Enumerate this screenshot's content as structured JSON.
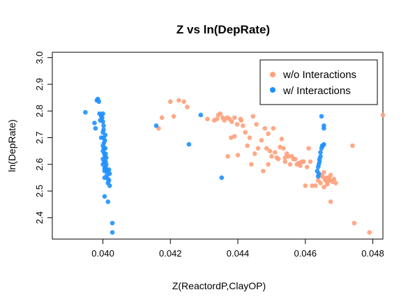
{
  "chart_data": {
    "type": "scatter",
    "title": "Z vs ln(DepRate)",
    "xlabel": "Z(ReactordP,ClayOP)",
    "ylabel": "ln(DepRate)",
    "xlim": [
      0.0385,
      0.0483
    ],
    "ylim": [
      2.32,
      3.02
    ],
    "xticks": [
      "0.040",
      "0.042",
      "0.044",
      "0.046",
      "0.048"
    ],
    "yticks": [
      "2.4",
      "2.5",
      "2.6",
      "2.7",
      "2.8",
      "2.9",
      "3.0"
    ],
    "legend": {
      "position": "top-right",
      "entries": [
        {
          "label": "w/o Interactions",
          "color": "#FFA07A"
        },
        {
          "label": "w/ Interactions",
          "color": "#1E90FF"
        }
      ]
    },
    "series": [
      {
        "name": "w/o Interactions",
        "color": "#FFA07A",
        "points": [
          [
            0.04165,
            2.735
          ],
          [
            0.04175,
            2.775
          ],
          [
            0.042,
            2.835
          ],
          [
            0.0421,
            2.78
          ],
          [
            0.04225,
            2.84
          ],
          [
            0.0424,
            2.835
          ],
          [
            0.0425,
            2.815
          ],
          [
            0.0431,
            2.77
          ],
          [
            0.0433,
            2.765
          ],
          [
            0.04338,
            2.77
          ],
          [
            0.04342,
            2.785
          ],
          [
            0.04348,
            2.79
          ],
          [
            0.04355,
            2.775
          ],
          [
            0.0436,
            2.765
          ],
          [
            0.04368,
            2.775
          ],
          [
            0.04375,
            2.77
          ],
          [
            0.04382,
            2.76
          ],
          [
            0.0439,
            2.775
          ],
          [
            0.04398,
            2.75
          ],
          [
            0.0437,
            2.63
          ],
          [
            0.0438,
            2.7
          ],
          [
            0.0439,
            2.705
          ],
          [
            0.044,
            2.635
          ],
          [
            0.04408,
            2.77
          ],
          [
            0.0441,
            2.765
          ],
          [
            0.04415,
            2.745
          ],
          [
            0.04422,
            2.72
          ],
          [
            0.04428,
            2.67
          ],
          [
            0.04435,
            2.7
          ],
          [
            0.0444,
            2.6
          ],
          [
            0.04445,
            2.78
          ],
          [
            0.0445,
            2.64
          ],
          [
            0.04455,
            2.75
          ],
          [
            0.0446,
            2.66
          ],
          [
            0.0447,
            2.69
          ],
          [
            0.04475,
            2.575
          ],
          [
            0.0448,
            2.735
          ],
          [
            0.04485,
            2.66
          ],
          [
            0.0449,
            2.715
          ],
          [
            0.0449,
            2.6
          ],
          [
            0.04495,
            2.65
          ],
          [
            0.045,
            2.63
          ],
          [
            0.04505,
            2.735
          ],
          [
            0.0451,
            2.645
          ],
          [
            0.04515,
            2.625
          ],
          [
            0.0452,
            2.62
          ],
          [
            0.04525,
            2.665
          ],
          [
            0.0453,
            2.695
          ],
          [
            0.04535,
            2.66
          ],
          [
            0.0454,
            2.625
          ],
          [
            0.0454,
            2.61
          ],
          [
            0.04545,
            2.64
          ],
          [
            0.0455,
            2.63
          ],
          [
            0.04555,
            2.6
          ],
          [
            0.0456,
            2.63
          ],
          [
            0.04565,
            2.62
          ],
          [
            0.0457,
            2.62
          ],
          [
            0.04575,
            2.6
          ],
          [
            0.0458,
            2.605
          ],
          [
            0.04585,
            2.595
          ],
          [
            0.0459,
            2.61
          ],
          [
            0.04595,
            2.61
          ],
          [
            0.046,
            2.52
          ],
          [
            0.04605,
            2.59
          ],
          [
            0.0461,
            2.66
          ],
          [
            0.04615,
            2.61
          ],
          [
            0.0462,
            2.52
          ],
          [
            0.0463,
            2.52
          ],
          [
            0.04638,
            2.54
          ],
          [
            0.04645,
            2.53
          ],
          [
            0.0465,
            2.555
          ],
          [
            0.04655,
            2.57
          ],
          [
            0.04658,
            2.545
          ],
          [
            0.0466,
            2.54
          ],
          [
            0.04663,
            2.55
          ],
          [
            0.04666,
            2.535
          ],
          [
            0.0467,
            2.55
          ],
          [
            0.04672,
            2.54
          ],
          [
            0.04675,
            2.56
          ],
          [
            0.0468,
            2.535
          ],
          [
            0.04685,
            2.545
          ],
          [
            0.0469,
            2.53
          ],
          [
            0.04675,
            2.46
          ],
          [
            0.04645,
            2.56
          ],
          [
            0.0474,
            2.67
          ],
          [
            0.04745,
            2.38
          ],
          [
            0.0479,
            2.345
          ],
          [
            0.0483,
            2.785
          ],
          [
            0.04655,
            2.515
          ],
          [
            0.04665,
            2.525
          ]
        ]
      },
      {
        "name": "w/ Interactions",
        "color": "#1E90FF",
        "points": [
          [
            0.03948,
            2.795
          ],
          [
            0.03975,
            2.755
          ],
          [
            0.03978,
            2.735
          ],
          [
            0.03982,
            2.84
          ],
          [
            0.03985,
            2.845
          ],
          [
            0.03988,
            2.835
          ],
          [
            0.0399,
            2.79
          ],
          [
            0.03992,
            2.765
          ],
          [
            0.03995,
            2.78
          ],
          [
            0.03995,
            2.7
          ],
          [
            0.03998,
            2.775
          ],
          [
            0.04,
            2.79
          ],
          [
            0.04,
            2.76
          ],
          [
            0.04,
            2.67
          ],
          [
            0.04,
            2.72
          ],
          [
            0.04,
            2.65
          ],
          [
            0.04,
            2.62
          ],
          [
            0.04,
            2.6
          ],
          [
            0.04002,
            2.745
          ],
          [
            0.04002,
            2.73
          ],
          [
            0.04002,
            2.7
          ],
          [
            0.04003,
            2.68
          ],
          [
            0.04003,
            2.66
          ],
          [
            0.04004,
            2.64
          ],
          [
            0.04004,
            2.61
          ],
          [
            0.04005,
            2.585
          ],
          [
            0.04005,
            2.575
          ],
          [
            0.04005,
            2.55
          ],
          [
            0.04006,
            2.69
          ],
          [
            0.04006,
            2.63
          ],
          [
            0.04007,
            2.71
          ],
          [
            0.04007,
            2.66
          ],
          [
            0.04008,
            2.64
          ],
          [
            0.04008,
            2.61
          ],
          [
            0.04008,
            2.59
          ],
          [
            0.0401,
            2.625
          ],
          [
            0.0401,
            2.6
          ],
          [
            0.0401,
            2.58
          ],
          [
            0.04012,
            2.56
          ],
          [
            0.04013,
            2.575
          ],
          [
            0.04015,
            2.545
          ],
          [
            0.04015,
            2.53
          ],
          [
            0.04018,
            2.58
          ],
          [
            0.04018,
            2.54
          ],
          [
            0.0402,
            2.565
          ],
          [
            0.0402,
            2.52
          ],
          [
            0.04005,
            2.48
          ],
          [
            0.04015,
            2.46
          ],
          [
            0.04028,
            2.38
          ],
          [
            0.04028,
            2.345
          ],
          [
            0.04158,
            2.745
          ],
          [
            0.04255,
            2.675
          ],
          [
            0.0429,
            2.785
          ],
          [
            0.04352,
            2.55
          ],
          [
            0.04635,
            2.575
          ],
          [
            0.04638,
            2.59
          ],
          [
            0.0464,
            2.6
          ],
          [
            0.0464,
            2.565
          ],
          [
            0.04642,
            2.62
          ],
          [
            0.04642,
            2.61
          ],
          [
            0.04645,
            2.63
          ],
          [
            0.04645,
            2.645
          ],
          [
            0.04648,
            2.66
          ],
          [
            0.0465,
            2.67
          ],
          [
            0.04652,
            2.67
          ],
          [
            0.04655,
            2.675
          ],
          [
            0.04648,
            2.78
          ],
          [
            0.04655,
            2.735
          ],
          [
            0.04655,
            2.745
          ],
          [
            0.04638,
            2.555
          ]
        ]
      }
    ]
  }
}
